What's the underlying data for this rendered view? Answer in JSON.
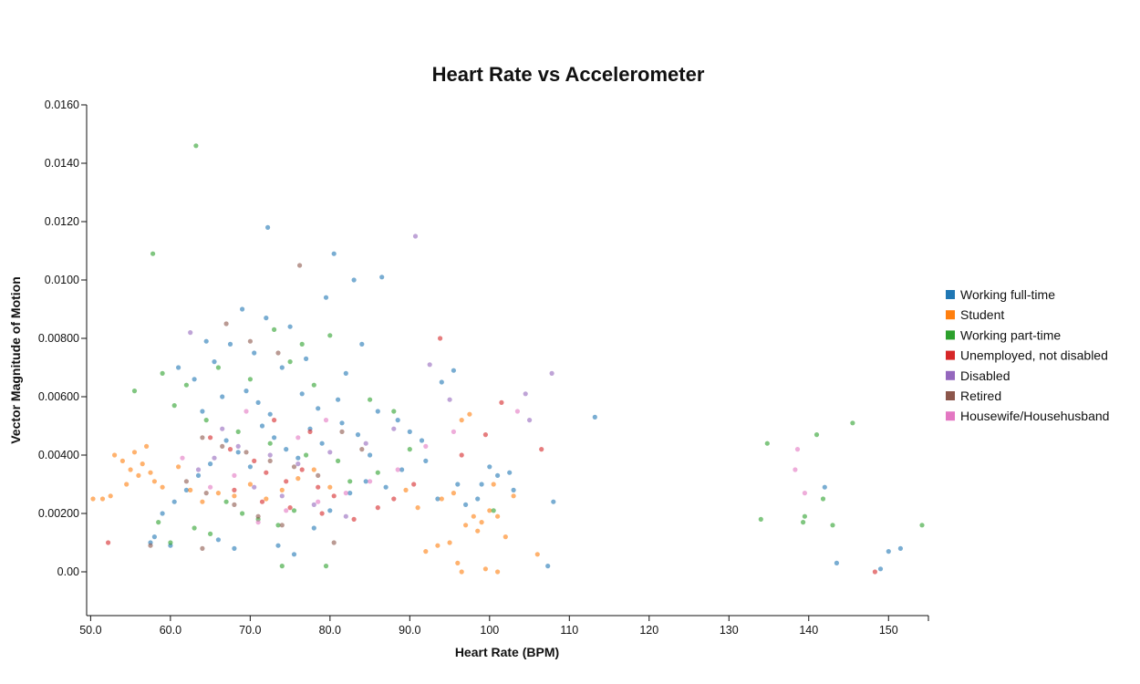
{
  "chart_data": {
    "type": "scatter",
    "title": "Heart Rate vs Accelerometer",
    "xlabel": "Heart Rate (BPM)",
    "ylabel": "Vector Magnitude of Motion",
    "xlim": [
      49.5,
      155
    ],
    "ylim": [
      -0.0015,
      0.016
    ],
    "x_ticks": [
      {
        "value": 50,
        "label": "50.0"
      },
      {
        "value": 60,
        "label": "60.0"
      },
      {
        "value": 70,
        "label": "70.0"
      },
      {
        "value": 80,
        "label": "80.0"
      },
      {
        "value": 90,
        "label": "90.0"
      },
      {
        "value": 100,
        "label": "100"
      },
      {
        "value": 110,
        "label": "110"
      },
      {
        "value": 120,
        "label": "120"
      },
      {
        "value": 130,
        "label": "130"
      },
      {
        "value": 140,
        "label": "140"
      },
      {
        "value": 150,
        "label": "150"
      }
    ],
    "y_ticks": [
      {
        "value": 0.0,
        "label": "0.00"
      },
      {
        "value": 0.002,
        "label": "0.00200"
      },
      {
        "value": 0.004,
        "label": "0.00400"
      },
      {
        "value": 0.006,
        "label": "0.00600"
      },
      {
        "value": 0.008,
        "label": "0.00800"
      },
      {
        "value": 0.01,
        "label": "0.0100"
      },
      {
        "value": 0.012,
        "label": "0.0120"
      },
      {
        "value": 0.014,
        "label": "0.0140"
      },
      {
        "value": 0.016,
        "label": "0.0160"
      }
    ],
    "grid": false,
    "legend_position": "right",
    "series": [
      {
        "name": "Working full-time",
        "color": "#1f77b4",
        "points": [
          [
            72.2,
            0.0118
          ],
          [
            80.5,
            0.0109
          ],
          [
            83.0,
            0.01
          ],
          [
            86.5,
            0.0101
          ],
          [
            79.5,
            0.0094
          ],
          [
            69.0,
            0.009
          ],
          [
            72.0,
            0.0087
          ],
          [
            75.0,
            0.0084
          ],
          [
            64.5,
            0.0079
          ],
          [
            67.5,
            0.0078
          ],
          [
            61.0,
            0.007
          ],
          [
            63.0,
            0.0066
          ],
          [
            65.5,
            0.0072
          ],
          [
            70.5,
            0.0075
          ],
          [
            74.0,
            0.007
          ],
          [
            77.0,
            0.0073
          ],
          [
            82.0,
            0.0068
          ],
          [
            84.0,
            0.0078
          ],
          [
            95.5,
            0.0069
          ],
          [
            94.0,
            0.0065
          ],
          [
            113.2,
            0.0053
          ],
          [
            108.0,
            0.0024
          ],
          [
            107.3,
            0.0002
          ],
          [
            99.0,
            0.003
          ],
          [
            101.0,
            0.0033
          ],
          [
            102.5,
            0.0034
          ],
          [
            98.5,
            0.0025
          ],
          [
            97.0,
            0.0023
          ],
          [
            91.5,
            0.0045
          ],
          [
            90.0,
            0.0048
          ],
          [
            88.5,
            0.0052
          ],
          [
            86.0,
            0.0055
          ],
          [
            85.0,
            0.004
          ],
          [
            83.5,
            0.0047
          ],
          [
            81.5,
            0.0051
          ],
          [
            79.0,
            0.0044
          ],
          [
            77.5,
            0.0049
          ],
          [
            76.0,
            0.0039
          ],
          [
            74.5,
            0.0042
          ],
          [
            73.0,
            0.0046
          ],
          [
            71.5,
            0.005
          ],
          [
            70.0,
            0.0036
          ],
          [
            68.5,
            0.0041
          ],
          [
            67.0,
            0.0045
          ],
          [
            65.0,
            0.0037
          ],
          [
            63.5,
            0.0033
          ],
          [
            62.0,
            0.0028
          ],
          [
            60.5,
            0.0024
          ],
          [
            59.0,
            0.002
          ],
          [
            58.0,
            0.0012
          ],
          [
            57.5,
            0.001
          ],
          [
            60.0,
            0.0009
          ],
          [
            66.0,
            0.0011
          ],
          [
            68.0,
            0.0008
          ],
          [
            73.5,
            0.0009
          ],
          [
            75.5,
            0.0006
          ],
          [
            78.0,
            0.0015
          ],
          [
            80.0,
            0.0021
          ],
          [
            82.5,
            0.0027
          ],
          [
            84.5,
            0.0031
          ],
          [
            87.0,
            0.0029
          ],
          [
            89.0,
            0.0035
          ],
          [
            92.0,
            0.0038
          ],
          [
            93.5,
            0.0025
          ],
          [
            96.0,
            0.003
          ],
          [
            100.0,
            0.0036
          ],
          [
            103.0,
            0.0028
          ],
          [
            142.0,
            0.0029
          ],
          [
            143.5,
            0.0003
          ],
          [
            149.0,
            0.0001
          ],
          [
            150.0,
            0.0007
          ],
          [
            151.5,
            0.0008
          ],
          [
            69.5,
            0.0062
          ],
          [
            71.0,
            0.0058
          ],
          [
            76.5,
            0.0061
          ],
          [
            78.5,
            0.0056
          ],
          [
            81.0,
            0.0059
          ],
          [
            64.0,
            0.0055
          ],
          [
            66.5,
            0.006
          ],
          [
            72.5,
            0.0054
          ]
        ]
      },
      {
        "name": "Student",
        "color": "#ff7f0e",
        "points": [
          [
            50.3,
            0.0025
          ],
          [
            51.5,
            0.0025
          ],
          [
            52.5,
            0.0026
          ],
          [
            53.0,
            0.004
          ],
          [
            54.0,
            0.0038
          ],
          [
            55.0,
            0.0035
          ],
          [
            56.0,
            0.0033
          ],
          [
            57.0,
            0.0043
          ],
          [
            58.0,
            0.0031
          ],
          [
            59.0,
            0.0029
          ],
          [
            54.5,
            0.003
          ],
          [
            56.5,
            0.0037
          ],
          [
            57.5,
            0.0034
          ],
          [
            55.5,
            0.0041
          ],
          [
            61.0,
            0.0036
          ],
          [
            62.5,
            0.0028
          ],
          [
            64.0,
            0.0024
          ],
          [
            66.0,
            0.0027
          ],
          [
            68.0,
            0.0026
          ],
          [
            70.0,
            0.003
          ],
          [
            72.0,
            0.0025
          ],
          [
            74.0,
            0.0028
          ],
          [
            76.0,
            0.0032
          ],
          [
            78.0,
            0.0035
          ],
          [
            80.0,
            0.0029
          ],
          [
            92.0,
            0.0007
          ],
          [
            93.5,
            0.0009
          ],
          [
            95.0,
            0.001
          ],
          [
            96.0,
            0.0003
          ],
          [
            96.5,
            0.0
          ],
          [
            97.0,
            0.0016
          ],
          [
            98.0,
            0.0019
          ],
          [
            99.0,
            0.0017
          ],
          [
            100.0,
            0.0021
          ],
          [
            101.0,
            0.0019
          ],
          [
            99.5,
            0.0001
          ],
          [
            101.0,
            0.0
          ],
          [
            102.0,
            0.0012
          ],
          [
            96.5,
            0.0052
          ],
          [
            97.5,
            0.0054
          ],
          [
            106.0,
            0.0006
          ],
          [
            103.0,
            0.0026
          ],
          [
            95.5,
            0.0027
          ],
          [
            94.0,
            0.0025
          ],
          [
            98.5,
            0.0014
          ],
          [
            100.5,
            0.003
          ],
          [
            91.0,
            0.0022
          ],
          [
            89.5,
            0.0028
          ]
        ]
      },
      {
        "name": "Working part-time",
        "color": "#2ca02c",
        "points": [
          [
            63.2,
            0.0146
          ],
          [
            57.8,
            0.0109
          ],
          [
            73.0,
            0.0083
          ],
          [
            80.0,
            0.0081
          ],
          [
            76.5,
            0.0078
          ],
          [
            59.0,
            0.0068
          ],
          [
            55.5,
            0.0062
          ],
          [
            62.0,
            0.0064
          ],
          [
            66.0,
            0.007
          ],
          [
            70.0,
            0.0066
          ],
          [
            75.0,
            0.0072
          ],
          [
            78.0,
            0.0064
          ],
          [
            85.0,
            0.0059
          ],
          [
            88.0,
            0.0055
          ],
          [
            60.5,
            0.0057
          ],
          [
            64.5,
            0.0052
          ],
          [
            68.5,
            0.0048
          ],
          [
            72.5,
            0.0044
          ],
          [
            77.0,
            0.004
          ],
          [
            81.0,
            0.0038
          ],
          [
            69.0,
            0.002
          ],
          [
            71.0,
            0.0018
          ],
          [
            73.5,
            0.0016
          ],
          [
            75.5,
            0.0021
          ],
          [
            74.0,
            0.0002
          ],
          [
            79.5,
            0.0002
          ],
          [
            65.0,
            0.0013
          ],
          [
            63.0,
            0.0015
          ],
          [
            60.0,
            0.001
          ],
          [
            58.5,
            0.0017
          ],
          [
            134.8,
            0.0044
          ],
          [
            134.0,
            0.0018
          ],
          [
            139.5,
            0.0019
          ],
          [
            139.3,
            0.0017
          ],
          [
            141.0,
            0.0047
          ],
          [
            145.5,
            0.0051
          ],
          [
            143.0,
            0.0016
          ],
          [
            141.8,
            0.0025
          ],
          [
            154.2,
            0.0016
          ],
          [
            67.0,
            0.0024
          ],
          [
            82.5,
            0.0031
          ],
          [
            86.0,
            0.0034
          ],
          [
            90.0,
            0.0042
          ],
          [
            100.5,
            0.0021
          ]
        ]
      },
      {
        "name": "Unemployed, not disabled",
        "color": "#d62728",
        "points": [
          [
            93.8,
            0.008
          ],
          [
            52.2,
            0.001
          ],
          [
            65.0,
            0.0046
          ],
          [
            67.5,
            0.0042
          ],
          [
            70.5,
            0.0038
          ],
          [
            72.0,
            0.0034
          ],
          [
            74.5,
            0.0031
          ],
          [
            76.5,
            0.0035
          ],
          [
            78.5,
            0.0029
          ],
          [
            80.5,
            0.0026
          ],
          [
            68.0,
            0.0028
          ],
          [
            71.5,
            0.0024
          ],
          [
            75.0,
            0.0022
          ],
          [
            79.0,
            0.002
          ],
          [
            83.0,
            0.0018
          ],
          [
            86.0,
            0.0022
          ],
          [
            88.0,
            0.0025
          ],
          [
            90.5,
            0.003
          ],
          [
            96.5,
            0.004
          ],
          [
            99.5,
            0.0047
          ],
          [
            101.5,
            0.0058
          ],
          [
            106.5,
            0.0042
          ],
          [
            148.3,
            0.0
          ],
          [
            73.0,
            0.0052
          ],
          [
            77.5,
            0.0048
          ]
        ]
      },
      {
        "name": "Disabled",
        "color": "#9467bd",
        "points": [
          [
            90.7,
            0.0115
          ],
          [
            62.5,
            0.0082
          ],
          [
            107.8,
            0.0068
          ],
          [
            104.5,
            0.0061
          ],
          [
            105.0,
            0.0052
          ],
          [
            92.5,
            0.0071
          ],
          [
            95.0,
            0.0059
          ],
          [
            88.0,
            0.0049
          ],
          [
            84.5,
            0.0044
          ],
          [
            80.0,
            0.0041
          ],
          [
            76.0,
            0.0037
          ],
          [
            72.5,
            0.004
          ],
          [
            68.5,
            0.0043
          ],
          [
            65.5,
            0.0039
          ],
          [
            63.5,
            0.0035
          ],
          [
            70.5,
            0.0029
          ],
          [
            74.0,
            0.0026
          ],
          [
            78.0,
            0.0023
          ],
          [
            82.0,
            0.0019
          ],
          [
            66.5,
            0.0049
          ]
        ]
      },
      {
        "name": "Retired",
        "color": "#8c564b",
        "points": [
          [
            76.2,
            0.0105
          ],
          [
            67.0,
            0.0085
          ],
          [
            70.0,
            0.0079
          ],
          [
            73.5,
            0.0075
          ],
          [
            64.0,
            0.0046
          ],
          [
            66.5,
            0.0043
          ],
          [
            69.5,
            0.0041
          ],
          [
            72.5,
            0.0038
          ],
          [
            75.5,
            0.0036
          ],
          [
            78.5,
            0.0033
          ],
          [
            62.0,
            0.0031
          ],
          [
            64.5,
            0.0027
          ],
          [
            68.0,
            0.0023
          ],
          [
            71.0,
            0.0019
          ],
          [
            74.0,
            0.0016
          ],
          [
            80.5,
            0.001
          ],
          [
            64.0,
            0.0008
          ],
          [
            57.5,
            0.0009
          ],
          [
            81.5,
            0.0048
          ],
          [
            84.0,
            0.0042
          ]
        ]
      },
      {
        "name": "Housewife/Househusband",
        "color": "#e377c2",
        "points": [
          [
            138.6,
            0.0042
          ],
          [
            138.3,
            0.0035
          ],
          [
            139.5,
            0.0027
          ],
          [
            103.5,
            0.0055
          ],
          [
            95.5,
            0.0048
          ],
          [
            92.0,
            0.0043
          ],
          [
            88.5,
            0.0035
          ],
          [
            85.0,
            0.0031
          ],
          [
            82.0,
            0.0027
          ],
          [
            78.5,
            0.0024
          ],
          [
            74.5,
            0.0021
          ],
          [
            71.0,
            0.0017
          ],
          [
            68.0,
            0.0033
          ],
          [
            65.0,
            0.0029
          ],
          [
            61.5,
            0.0039
          ],
          [
            76.0,
            0.0046
          ],
          [
            79.5,
            0.0052
          ],
          [
            69.5,
            0.0055
          ]
        ]
      }
    ]
  }
}
